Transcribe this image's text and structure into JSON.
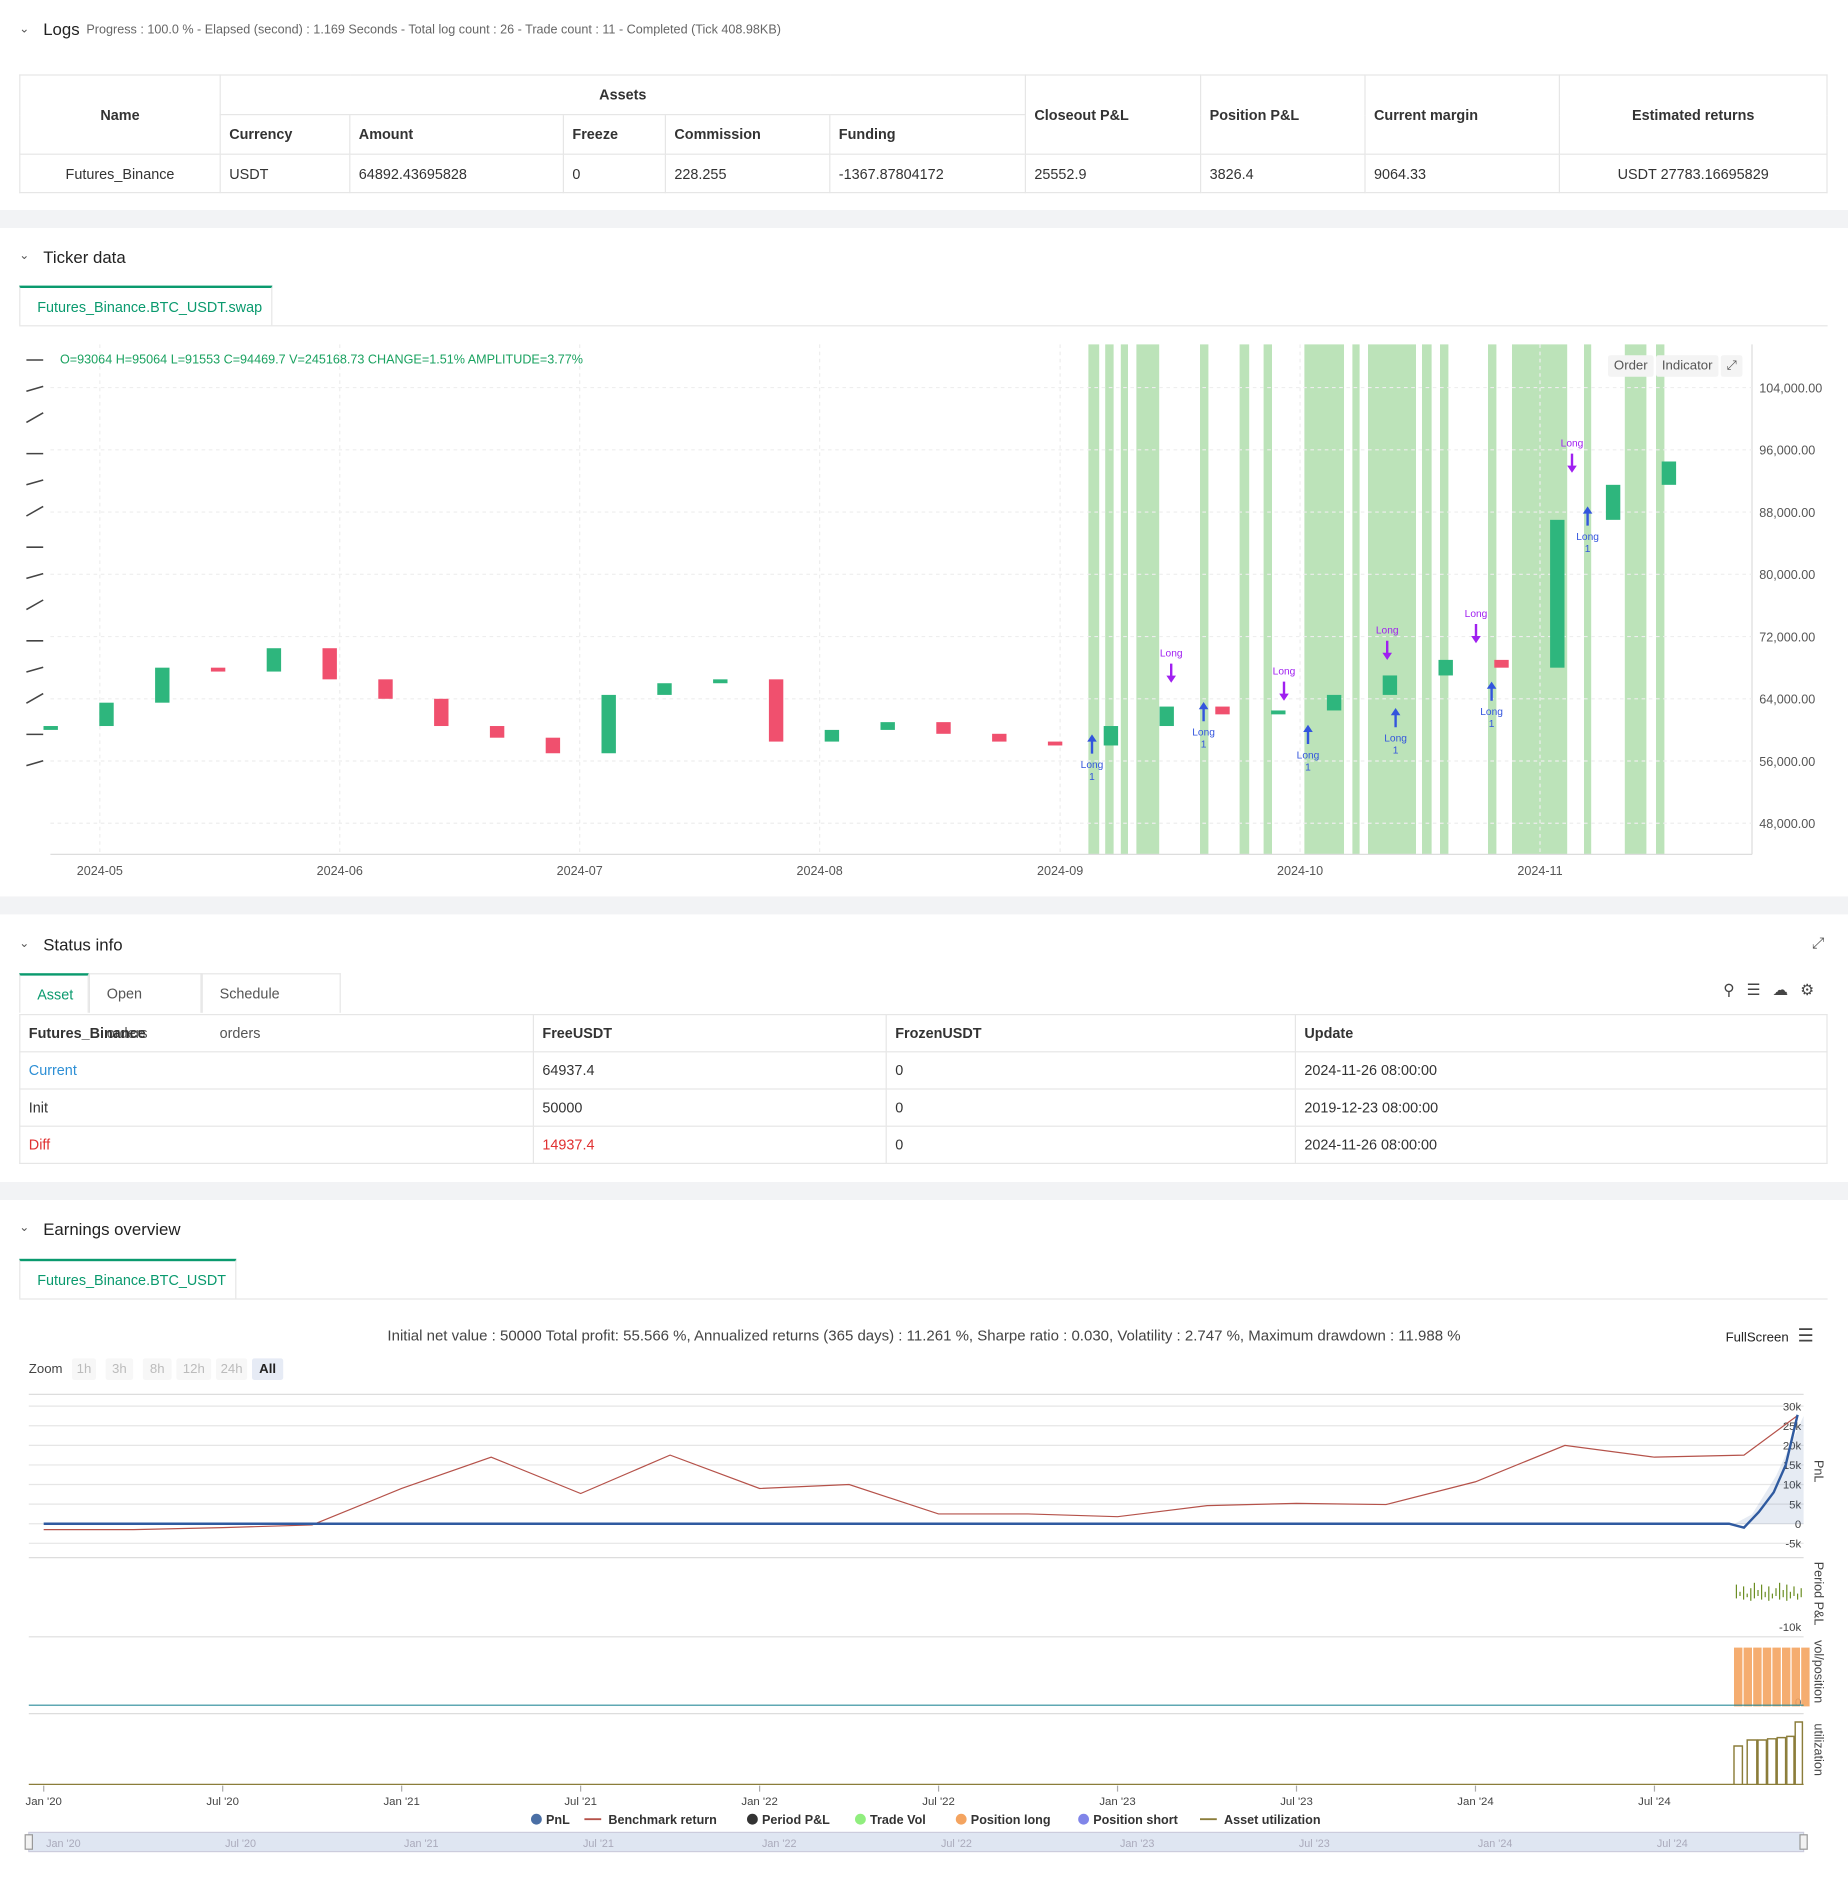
{
  "logs": {
    "title": "Logs",
    "summary": "Progress : 100.0 % - Elapsed (second) : 1.169  Seconds - Total log count : 26 - Trade count : 11 - Completed (Tick 408.98KB)",
    "table": {
      "headers": [
        "Name",
        "Assets",
        "Closeout P&L",
        "Position P&L",
        "Current margin",
        "Estimated returns"
      ],
      "subheaders": [
        "Currency",
        "Amount",
        "Freeze",
        "Commission",
        "Funding"
      ],
      "rows": [
        [
          "Futures_Binance",
          "USDT",
          "64892.43695828",
          "0",
          "228.255",
          "-1367.87804172",
          "25552.9",
          "3826.4",
          "9064.33",
          "USDT 27783.16695829"
        ]
      ]
    }
  },
  "ticker": {
    "title": "Ticker data",
    "tab": "Futures_Binance.BTC_USDT.swap",
    "ohlc": "O=93064 H=95064 L=91553 C=94469.7 V=245168.73 CHANGE=1.51% AMPLITUDE=3.77%",
    "buttons": [
      "Order",
      "Indicator"
    ],
    "chart": {
      "type": "candlestick",
      "open": 60000,
      "closes": [
        60500,
        63500,
        68000,
        67500,
        70500,
        66500,
        64000,
        60500,
        59000,
        57000,
        64500,
        66000,
        66500,
        58500,
        60000,
        61000,
        59500,
        58500,
        58000,
        60500,
        63000,
        62000,
        62500,
        64500,
        67000,
        69000,
        68000,
        87000,
        91500,
        94500
      ],
      "up_color": "#2eb67d",
      "down_color": "#f0506e",
      "ylim": [
        44000,
        109550
      ],
      "yticks": [
        {
          "value": 48000,
          "label": "48,000.00"
        },
        {
          "value": 56000,
          "label": "56,000.00"
        },
        {
          "value": 64000,
          "label": "64,000.00"
        },
        {
          "value": 72000,
          "label": "72,000.00"
        },
        {
          "value": 80000,
          "label": "80,000.00"
        },
        {
          "value": 88000,
          "label": "88,000.00"
        },
        {
          "value": 96000,
          "label": "96,000.00"
        },
        {
          "value": 104000,
          "label": "104,000.00"
        }
      ],
      "xlim": [
        -0.5,
        30.5
      ],
      "xticks": [
        {
          "value": 0.88,
          "label": "2024-05"
        },
        {
          "value": 5.18,
          "label": "2024-06"
        },
        {
          "value": 9.48,
          "label": "2024-07"
        },
        {
          "value": 13.78,
          "label": "2024-08"
        },
        {
          "value": 18.09,
          "label": "2024-09"
        },
        {
          "value": 22.39,
          "label": "2024-10"
        },
        {
          "value": 26.69,
          "label": "2024-11"
        }
      ],
      "entries": [
        {
          "label": "Long",
          "amount": 1
        },
        {
          "label": "Long",
          "amount": 1
        },
        {
          "label": "Long",
          "amount": 1
        },
        {
          "label": "Long",
          "amount": 1
        },
        {
          "label": "Long",
          "amount": 1
        },
        {
          "label": "Long",
          "amount": 1
        }
      ],
      "exits": [
        {
          "label": "Long"
        },
        {
          "label": "Long"
        },
        {
          "label": "Long"
        },
        {
          "label": "Long"
        },
        {
          "label": "Long"
        }
      ]
    }
  },
  "status": {
    "title": "Status info",
    "tabs": [
      "Asset",
      "Open orders",
      "Schedule orders"
    ],
    "table": {
      "headers": [
        "Futures_Binance",
        "FreeUSDT",
        "FrozenUSDT",
        "Update"
      ],
      "rows": [
        [
          "Current",
          "64937.4",
          "0",
          "2024-11-26 08:00:00"
        ],
        [
          "Init",
          "50000",
          "0",
          "2019-12-23 08:00:00"
        ],
        [
          "Diff",
          "14937.4",
          "0",
          "2024-11-26 08:00:00"
        ]
      ]
    }
  },
  "earnings": {
    "title": "Earnings overview",
    "tab": "Futures_Binance.BTC_USDT",
    "summary": "Initial net value : 50000 Total profit: 55.566 %, Annualized returns (365 days) : 11.261 %, Sharpe ratio : 0.030, Volatility : 2.747 %, Maximum drawdown : 11.988 %",
    "fullscreen": "FullScreen",
    "zoom_label": "Zoom",
    "zoom_buttons": [
      "1h",
      "3h",
      "8h",
      "12h",
      "24h",
      "All"
    ],
    "chart": {
      "type": "line",
      "axis_title": "PnL",
      "ylim": [
        -6500,
        33000
      ],
      "yticks": [
        {
          "value": -5000,
          "label": "-5k"
        },
        0,
        {
          "value": 5000,
          "label": "5k"
        },
        {
          "value": 10000,
          "label": "10k"
        },
        {
          "value": 15000,
          "label": "15k"
        },
        {
          "value": 20000,
          "label": "20k"
        },
        {
          "value": 25000,
          "label": "25k"
        },
        {
          "value": 30000,
          "label": "30k"
        }
      ],
      "xlim": [
        -0.5,
        59
      ],
      "xticks": [
        {
          "value": 0,
          "label": "Jan '20"
        },
        {
          "value": 6,
          "label": "Jul '20"
        },
        {
          "value": 12,
          "label": "Jan '21"
        },
        {
          "value": 18,
          "label": "Jul '21"
        },
        {
          "value": 24,
          "label": "Jan '22"
        },
        {
          "value": 30,
          "label": "Jul '22"
        },
        {
          "value": 36,
          "label": "Jan '23"
        },
        {
          "value": 42,
          "label": "Jul '23"
        },
        {
          "value": 48,
          "label": "Jan '24"
        },
        {
          "value": 54,
          "label": "Jul '24"
        }
      ],
      "series": [
        {
          "color": "#b5524a",
          "x": [
            0,
            3,
            6,
            9,
            12,
            15,
            18,
            21,
            24,
            27,
            30,
            33,
            36,
            39,
            42,
            45,
            48,
            51,
            54,
            57,
            58.8
          ],
          "values": [
            -1500,
            -1500,
            -1000,
            -300,
            9000,
            17000,
            7700,
            17500,
            9000,
            10000,
            2500,
            2500,
            1800,
            4600,
            5200,
            4900,
            10700,
            20000,
            17000,
            17500,
            27600
          ]
        },
        {
          "color": "#2f5aa0",
          "x": [
            0,
            54,
            56.5,
            57,
            57.5,
            58,
            58.4,
            58.8
          ],
          "values": [
            0,
            0,
            0,
            -1000,
            3000,
            8000,
            15000,
            27800
          ]
        }
      ],
      "panels": [
        {
          "title": "Period P&L",
          "ylim": [
            -11500,
            24000
          ],
          "yticks": [
            {
              "value": -10000,
              "label": "-10k"
            }
          ]
        },
        {
          "title": "vol/position",
          "yticks": [
            0
          ]
        },
        {
          "title": "utilization"
        }
      ],
      "legend": [
        {
          "name": "PnL",
          "color": "#4a6fa5",
          "marker": "dot"
        },
        {
          "name": "Benchmark return",
          "color": "#b5524a",
          "marker": "line"
        },
        {
          "name": "Period P&L",
          "color": "#333333",
          "marker": "dot"
        },
        {
          "name": "Trade Vol",
          "color": "#90ee7e",
          "marker": "dot"
        },
        {
          "name": "Position long",
          "color": "#f4a460",
          "marker": "dot"
        },
        {
          "name": "Position short",
          "color": "#8085e9",
          "marker": "dot"
        },
        {
          "name": "Asset utilization",
          "color": "#8b7d3a",
          "marker": "line"
        }
      ]
    }
  }
}
